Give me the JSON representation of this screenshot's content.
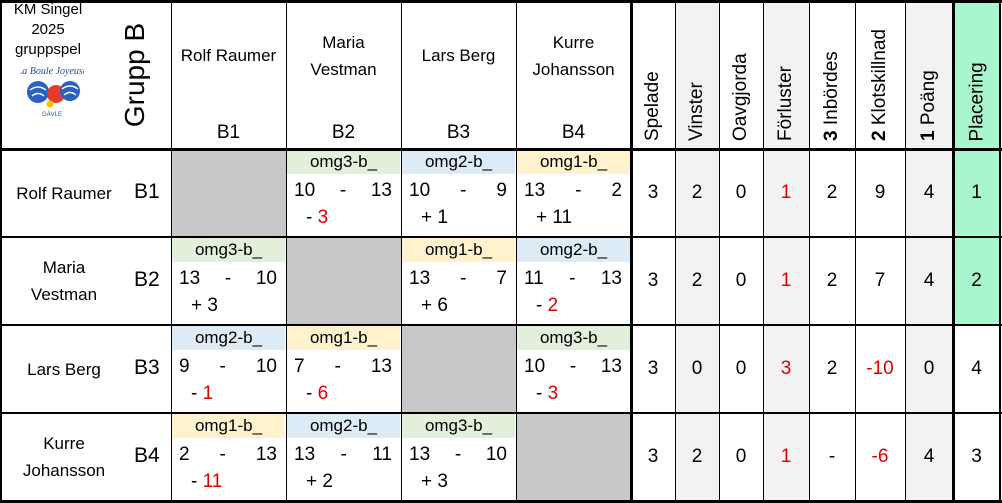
{
  "header": {
    "title_line1": "KM Singel",
    "title_line2": "2025",
    "logo_text": "La Boule Joyeuse",
    "logo_sub": "GÄVLE",
    "subtitle": "gruppspel",
    "group_label": "Grupp B"
  },
  "players": [
    {
      "name_line1": "Rolf Raumer",
      "name_line2": "",
      "code": "B1"
    },
    {
      "name_line1": "Maria",
      "name_line2": "Vestman",
      "code": "B2"
    },
    {
      "name_line1": "Lars Berg",
      "name_line2": "",
      "code": "B3"
    },
    {
      "name_line1": "Kurre",
      "name_line2": "Johansson",
      "code": "B4"
    }
  ],
  "stat_headers": [
    {
      "num": "",
      "label": "Spelade"
    },
    {
      "num": "",
      "label": "Vinster"
    },
    {
      "num": "",
      "label": "Oavgjorda"
    },
    {
      "num": "",
      "label": "Förluster"
    },
    {
      "num": "3",
      "label": " Inbördes"
    },
    {
      "num": "2",
      "label": " Klotskillnad"
    },
    {
      "num": "1",
      "label": " Poäng"
    },
    {
      "num": "",
      "label": "Placering"
    }
  ],
  "matches": [
    [
      null,
      {
        "tag": "omg3-b_",
        "color": "#e2efda",
        "a": "10",
        "b": "13",
        "diff": "3",
        "sign": "-",
        "neg": true
      },
      {
        "tag": "omg2-b_",
        "color": "#ddebf7",
        "a": "10",
        "b": "9",
        "diff": "1",
        "sign": "+",
        "neg": false
      },
      {
        "tag": "omg1-b_",
        "color": "#fff2cc",
        "a": "13",
        "b": "2",
        "diff": "11",
        "sign": "+",
        "neg": false
      }
    ],
    [
      {
        "tag": "omg3-b_",
        "color": "#e2efda",
        "a": "13",
        "b": "10",
        "diff": "3",
        "sign": "+",
        "neg": false
      },
      null,
      {
        "tag": "omg1-b_",
        "color": "#fff2cc",
        "a": "13",
        "b": "7",
        "diff": "6",
        "sign": "+",
        "neg": false
      },
      {
        "tag": "omg2-b_",
        "color": "#ddebf7",
        "a": "11",
        "b": "13",
        "diff": "2",
        "sign": "-",
        "neg": true
      }
    ],
    [
      {
        "tag": "omg2-b_",
        "color": "#ddebf7",
        "a": "9",
        "b": "10",
        "diff": "1",
        "sign": "-",
        "neg": true
      },
      {
        "tag": "omg1-b_",
        "color": "#fff2cc",
        "a": "7",
        "b": "13",
        "diff": "6",
        "sign": "-",
        "neg": true
      },
      null,
      {
        "tag": "omg3-b_",
        "color": "#e2efda",
        "a": "10",
        "b": "13",
        "diff": "3",
        "sign": "-",
        "neg": true
      }
    ],
    [
      {
        "tag": "omg1-b_",
        "color": "#fff2cc",
        "a": "2",
        "b": "13",
        "diff": "11",
        "sign": "-",
        "neg": true
      },
      {
        "tag": "omg2-b_",
        "color": "#ddebf7",
        "a": "13",
        "b": "11",
        "diff": "2",
        "sign": "+",
        "neg": false
      },
      {
        "tag": "omg3-b_",
        "color": "#e2efda",
        "a": "13",
        "b": "10",
        "diff": "3",
        "sign": "+",
        "neg": false
      },
      null
    ]
  ],
  "stats": [
    [
      {
        "v": "3"
      },
      {
        "v": "2"
      },
      {
        "v": "0"
      },
      {
        "v": "1",
        "red": true
      },
      {
        "v": "2"
      },
      {
        "v": "9"
      },
      {
        "v": "4"
      },
      {
        "v": "1",
        "hl": true
      }
    ],
    [
      {
        "v": "3"
      },
      {
        "v": "2"
      },
      {
        "v": "0"
      },
      {
        "v": "1",
        "red": true
      },
      {
        "v": "2"
      },
      {
        "v": "7"
      },
      {
        "v": "4"
      },
      {
        "v": "2",
        "hl": true
      }
    ],
    [
      {
        "v": "3"
      },
      {
        "v": "0"
      },
      {
        "v": "0"
      },
      {
        "v": "3",
        "red": true
      },
      {
        "v": "2"
      },
      {
        "v": "-10",
        "red": true
      },
      {
        "v": "0"
      },
      {
        "v": "4"
      }
    ],
    [
      {
        "v": "3"
      },
      {
        "v": "2"
      },
      {
        "v": "0"
      },
      {
        "v": "1",
        "red": true
      },
      {
        "v": "-"
      },
      {
        "v": "-6",
        "red": true
      },
      {
        "v": "4"
      },
      {
        "v": "3"
      }
    ]
  ],
  "colors": {
    "grey_cell": "#c8c8c8",
    "shaded_col": "#f2f2f2",
    "highlight": "#a9f5cd",
    "red": "#e00000"
  }
}
